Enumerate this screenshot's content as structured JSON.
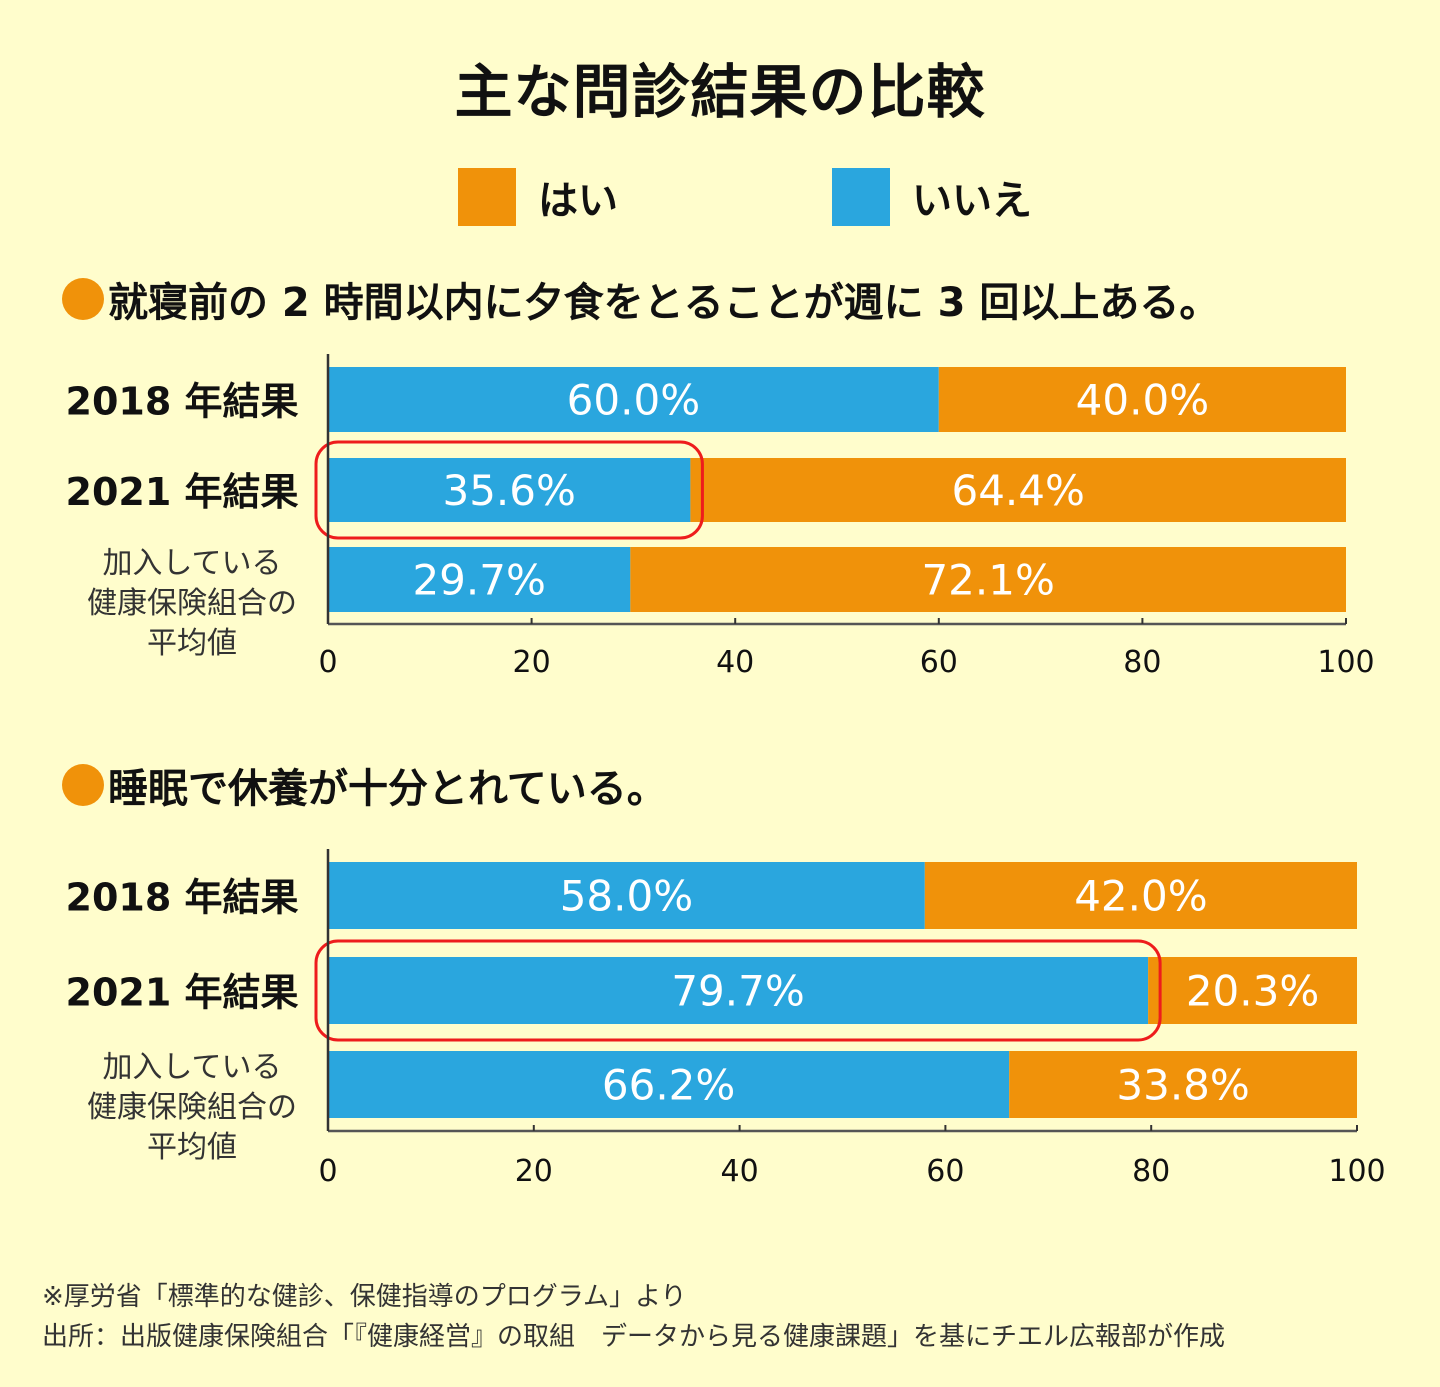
{
  "title": "主な問診結果の比較",
  "legend": [
    {
      "label": "はい",
      "color": "#f0920a"
    },
    {
      "label": "いいえ",
      "color": "#2aa6de"
    }
  ],
  "colors": {
    "no": "#2aa6de",
    "yes": "#f0920a",
    "highlight": "#ee1c1c",
    "background": "#fffdcc"
  },
  "chart_data": [
    {
      "type": "bar",
      "orientation": "horizontal-stacked",
      "title": "就寝前の 2 時間以内に夕食をとることが週に 3 回以上ある。",
      "categories": [
        "2018 年結果",
        "2021 年結果",
        "加入している健康保険組合の平均値"
      ],
      "category_lines": [
        [
          "2018 年結果"
        ],
        [
          "2021 年結果"
        ],
        [
          "加入している",
          "健康保険組合の",
          "平均値"
        ]
      ],
      "series": [
        {
          "name": "いいえ",
          "values": [
            60.0,
            35.6,
            29.7
          ],
          "labels": [
            "60.0%",
            "35.6%",
            "29.7%"
          ]
        },
        {
          "name": "はい",
          "values": [
            40.0,
            64.4,
            72.1
          ],
          "labels": [
            "40.0%",
            "64.4%",
            "72.1%"
          ]
        }
      ],
      "highlight_category": "2021 年結果",
      "xlim": [
        0,
        100
      ],
      "xticks": [
        "0",
        "20",
        "40",
        "60",
        "80",
        "100"
      ],
      "grid": false
    },
    {
      "type": "bar",
      "orientation": "horizontal-stacked",
      "title": "睡眠で休養が十分とれている。",
      "categories": [
        "2018 年結果",
        "2021 年結果",
        "加入している健康保険組合の平均値"
      ],
      "category_lines": [
        [
          "2018 年結果"
        ],
        [
          "2021 年結果"
        ],
        [
          "加入している",
          "健康保険組合の",
          "平均値"
        ]
      ],
      "series": [
        {
          "name": "いいえ",
          "values": [
            58.0,
            79.7,
            66.2
          ],
          "labels": [
            "58.0%",
            "79.7%",
            "66.2%"
          ]
        },
        {
          "name": "はい",
          "values": [
            42.0,
            20.3,
            33.8
          ],
          "labels": [
            "42.0%",
            "20.3%",
            "33.8%"
          ]
        }
      ],
      "highlight_category": "2021 年結果",
      "xlim": [
        0,
        100
      ],
      "xticks": [
        "0",
        "20",
        "40",
        "60",
        "80",
        "100"
      ],
      "grid": false
    }
  ],
  "footer": {
    "note": "※厚労省「標準的な健診、保健指導のプログラム」より",
    "source": "出所：出版健康保険組合「『健康経営』の取組　データから見る健康課題」を基にチエル広報部が作成"
  }
}
